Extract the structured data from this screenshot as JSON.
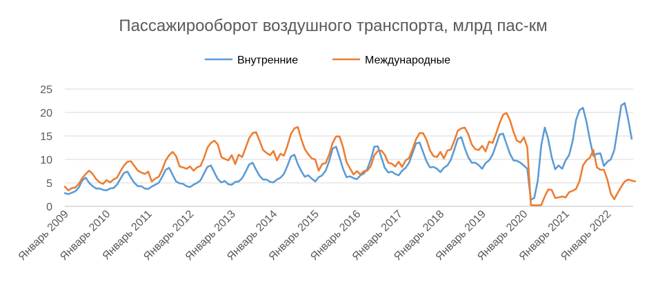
{
  "chart_data": {
    "type": "line",
    "title": "Пассажирооборот  воздушного транспорта, млрд пас-км",
    "xlabel": "",
    "ylabel": "",
    "ylim": [
      0,
      25
    ],
    "y_ticks": [
      "0",
      "5",
      "10",
      "15",
      "20",
      "25"
    ],
    "grid": true,
    "legend_position": "top",
    "x_tick_labels": [
      "Январь 2009",
      "Январь 2010",
      "Январь 2011",
      "Январь 2012",
      "Январь 2013",
      "Январь 2014",
      "Январь 2015",
      "Январь 2016",
      "Январь 2017",
      "Январь 2018",
      "Январь 2019",
      "Январь 2020",
      "Январь 2021",
      "Январь 2022"
    ],
    "x_range": [
      "Январь 2009",
      "Октябрь 2022"
    ],
    "series": [
      {
        "name": "Внутренние",
        "color": "#5b9bd5",
        "values": [
          2.8,
          2.6,
          2.9,
          3.2,
          4.0,
          5.5,
          6.1,
          5.0,
          4.3,
          3.8,
          3.8,
          3.5,
          3.4,
          3.8,
          3.9,
          4.6,
          5.9,
          7.1,
          7.4,
          6.1,
          5.0,
          4.3,
          4.3,
          3.8,
          3.7,
          4.2,
          4.6,
          5.0,
          6.3,
          7.8,
          8.2,
          6.7,
          5.3,
          4.9,
          4.8,
          4.3,
          4.1,
          4.6,
          5.0,
          5.5,
          7.0,
          8.4,
          8.7,
          7.2,
          5.8,
          5.1,
          5.4,
          4.7,
          4.6,
          5.2,
          5.3,
          6.0,
          7.4,
          8.9,
          9.3,
          7.8,
          6.5,
          5.7,
          5.7,
          5.2,
          5.1,
          5.7,
          6.1,
          6.9,
          8.6,
          10.6,
          11.0,
          9.0,
          7.5,
          6.3,
          6.6,
          5.9,
          5.3,
          6.2,
          6.6,
          7.6,
          9.6,
          12.3,
          12.7,
          10.4,
          8.0,
          6.2,
          6.4,
          6.0,
          5.8,
          6.6,
          7.0,
          8.0,
          10.0,
          12.7,
          12.8,
          10.5,
          8.2,
          7.2,
          7.4,
          6.9,
          6.6,
          7.6,
          8.2,
          9.3,
          11.4,
          13.4,
          13.6,
          11.6,
          9.6,
          8.3,
          8.4,
          8.0,
          7.3,
          8.2,
          8.7,
          9.9,
          12.1,
          14.4,
          14.7,
          12.4,
          10.5,
          9.3,
          9.3,
          8.8,
          8.0,
          9.2,
          9.8,
          11.0,
          13.1,
          15.3,
          15.5,
          13.3,
          11.2,
          9.8,
          9.7,
          9.3,
          8.7,
          8.0,
          1.4,
          1.8,
          5.5,
          13.0,
          16.8,
          14.3,
          10.5,
          7.9,
          8.7,
          8.0,
          9.8,
          10.9,
          13.8,
          18.4,
          20.5,
          21.0,
          18.0,
          14.1,
          10.7,
          11.2,
          11.3,
          8.6,
          9.5,
          10.0,
          12.0,
          16.6,
          21.5,
          22.0,
          18.5,
          14.4
        ]
      },
      {
        "name": "Международные",
        "color": "#ed7d31",
        "values": [
          4.2,
          3.4,
          3.9,
          4.0,
          4.8,
          6.0,
          6.9,
          7.6,
          6.9,
          5.8,
          5.1,
          4.8,
          5.6,
          5.1,
          5.7,
          6.1,
          7.5,
          8.7,
          9.5,
          9.6,
          8.6,
          7.6,
          7.2,
          6.9,
          7.4,
          5.3,
          5.9,
          6.3,
          7.8,
          9.8,
          10.9,
          11.6,
          10.7,
          8.5,
          8.3,
          8.0,
          8.5,
          7.6,
          8.3,
          8.6,
          10.3,
          12.5,
          13.5,
          14.0,
          13.2,
          10.5,
          10.1,
          9.8,
          10.9,
          9.0,
          11.0,
          10.5,
          12.5,
          14.5,
          15.6,
          15.8,
          14.0,
          12.0,
          11.4,
          10.9,
          11.8,
          9.8,
          11.2,
          10.8,
          12.9,
          15.4,
          16.6,
          16.9,
          14.3,
          12.2,
          11.1,
          10.2,
          10.0,
          7.6,
          9.0,
          9.2,
          11.0,
          13.5,
          14.9,
          14.9,
          12.6,
          9.4,
          8.1,
          6.8,
          7.5,
          6.8,
          7.5,
          7.6,
          8.6,
          10.9,
          11.8,
          11.9,
          11.0,
          9.3,
          9.1,
          8.5,
          9.5,
          8.4,
          9.8,
          10.3,
          12.2,
          14.3,
          15.6,
          15.6,
          14.2,
          11.9,
          10.7,
          10.5,
          11.6,
          10.2,
          11.9,
          12.1,
          14.0,
          16.1,
          16.6,
          16.8,
          15.4,
          13.2,
          12.2,
          12.0,
          12.9,
          11.7,
          13.8,
          13.5,
          15.5,
          17.7,
          19.5,
          19.9,
          18.4,
          15.9,
          14.0,
          13.6,
          14.7,
          12.6,
          0.3,
          0.2,
          0.2,
          0.3,
          2.1,
          3.6,
          3.5,
          1.8,
          1.9,
          2.1,
          1.9,
          3.0,
          3.3,
          3.7,
          5.4,
          8.7,
          9.8,
          10.4,
          12.0,
          8.3,
          7.8,
          7.8,
          5.7,
          2.7,
          1.5,
          2.9,
          4.2,
          5.3,
          5.7,
          5.5,
          5.3
        ]
      }
    ]
  }
}
